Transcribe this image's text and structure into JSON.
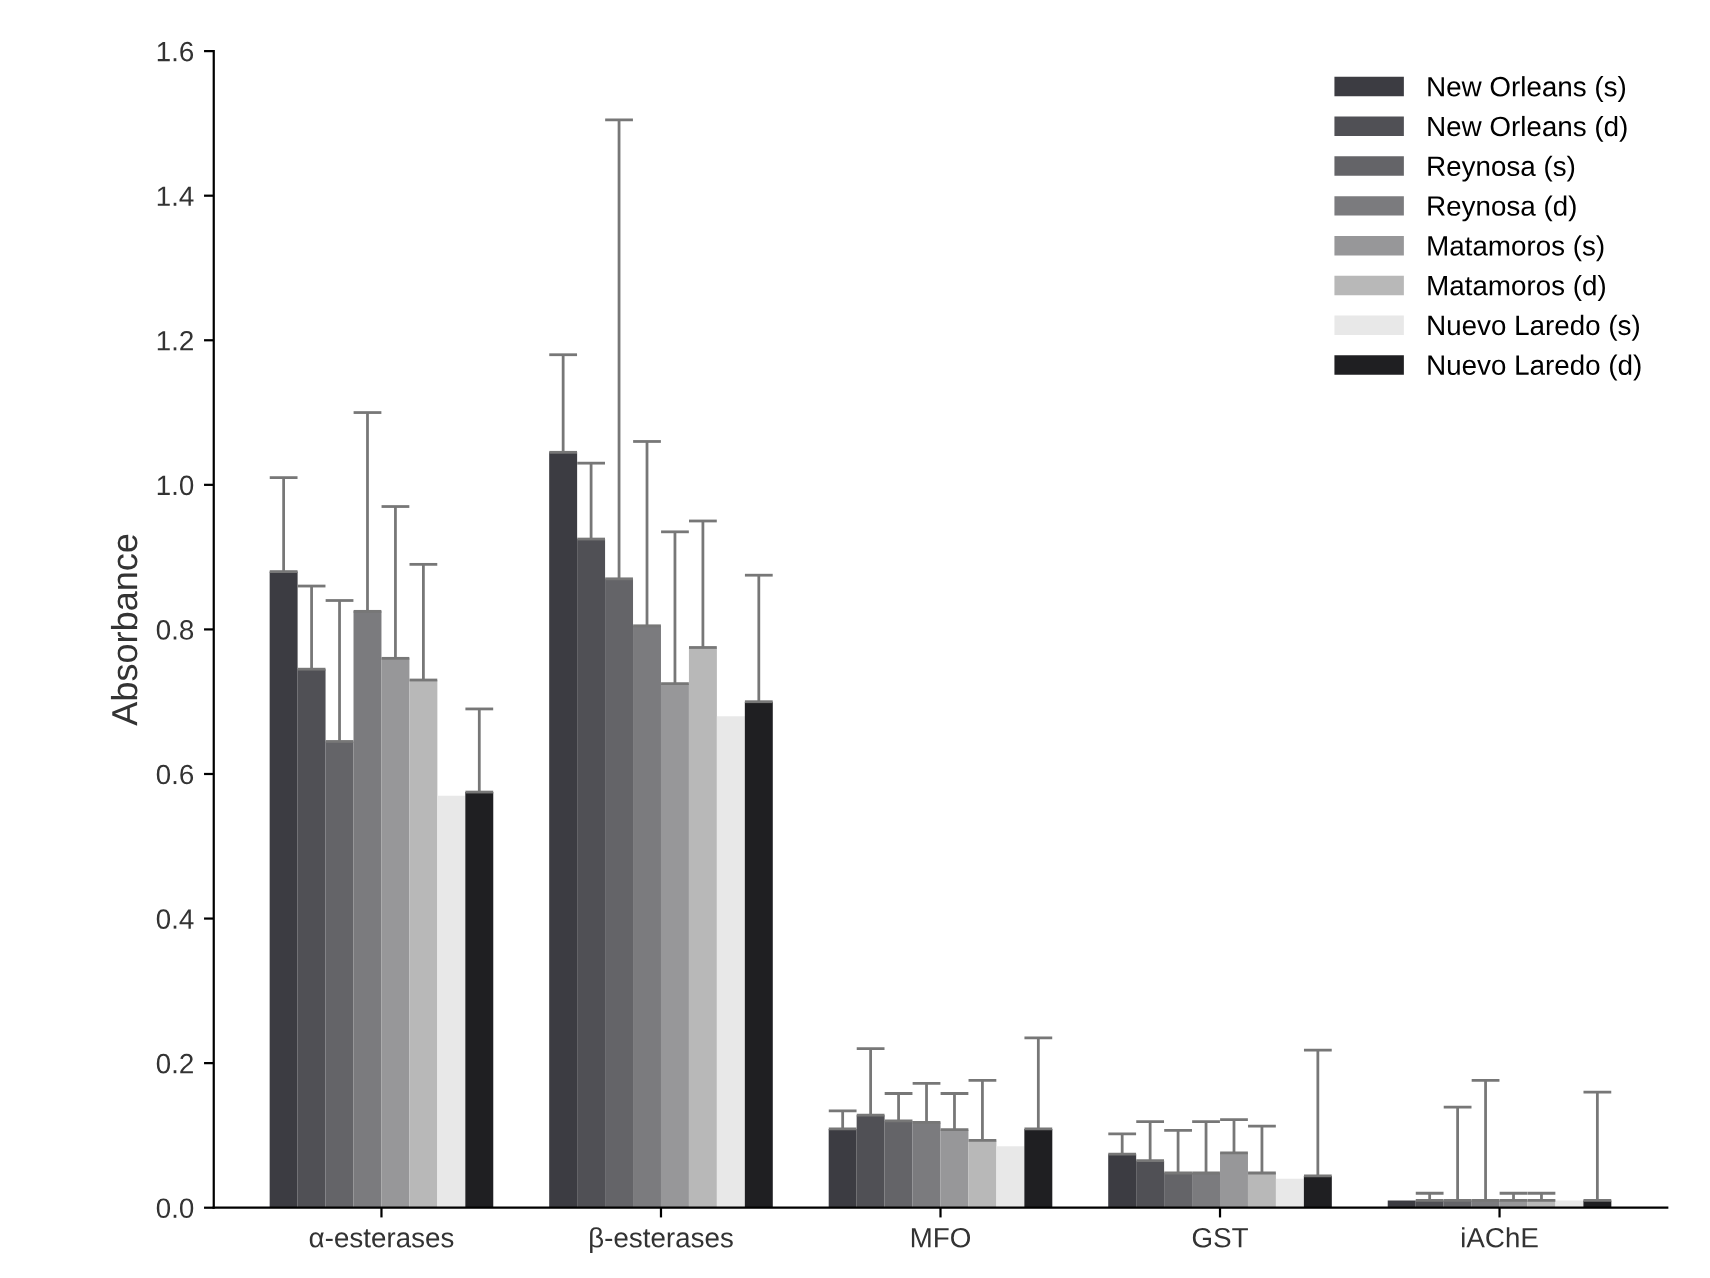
{
  "chart_data": {
    "type": "bar",
    "ylabel": "Absorbance",
    "categories": [
      "α-esterases",
      "β-esterases",
      "MFO",
      "GST",
      "iAChE"
    ],
    "ylim": [
      0,
      1.6
    ],
    "yticks": [
      {
        "value": 0,
        "label": "0.0"
      },
      {
        "value": 0.2,
        "label": "0.2"
      },
      {
        "value": 0.4,
        "label": "0.4"
      },
      {
        "value": 0.6,
        "label": "0.6"
      },
      {
        "value": 0.8,
        "label": "0.8"
      },
      {
        "value": 1.0,
        "label": "1.0"
      },
      {
        "value": 1.2,
        "label": "1.2"
      },
      {
        "value": 1.4,
        "label": "1.4"
      },
      {
        "value": 1.6,
        "label": "1.6"
      }
    ],
    "grid": false,
    "legend": "top right",
    "series": [
      {
        "name": "New Orleans (s)",
        "color": "#3c3c42",
        "values": [
          0.88,
          1.045,
          0.109,
          0.074,
          0.01
        ],
        "errors": [
          [
            0.88,
            1.01
          ],
          [
            1.045,
            1.18
          ],
          [
            0.109,
            0.134
          ],
          [
            0.074,
            0.102
          ],
          null
        ]
      },
      {
        "name": "New Orleans (d)",
        "color": "#505055",
        "values": [
          0.745,
          0.925,
          0.128,
          0.065,
          0.01
        ],
        "errors": [
          [
            0.745,
            0.86
          ],
          [
            0.925,
            1.03
          ],
          [
            0.128,
            0.22
          ],
          [
            0.065,
            0.119
          ],
          [
            0.01,
            0.02
          ]
        ]
      },
      {
        "name": "Reynosa (s)",
        "color": "#646468",
        "values": [
          0.645,
          0.87,
          0.12,
          0.048,
          0.01
        ],
        "errors": [
          [
            0.645,
            0.84
          ],
          [
            0.87,
            1.505
          ],
          [
            0.12,
            0.158
          ],
          [
            0.048,
            0.107
          ],
          [
            0.01,
            0.139
          ]
        ]
      },
      {
        "name": "Reynosa (d)",
        "color": "#7b7b7e",
        "values": [
          0.825,
          0.805,
          0.118,
          0.048,
          0.01
        ],
        "errors": [
          [
            0.825,
            1.1
          ],
          [
            0.805,
            1.06
          ],
          [
            0.118,
            0.172
          ],
          [
            0.048,
            0.119
          ],
          [
            0.01,
            0.176
          ]
        ]
      },
      {
        "name": "Matamoros (s)",
        "color": "#979799",
        "values": [
          0.76,
          0.725,
          0.108,
          0.076,
          0.01
        ],
        "errors": [
          [
            0.76,
            0.97
          ],
          [
            0.725,
            0.935
          ],
          [
            0.108,
            0.158
          ],
          [
            0.076,
            0.122
          ],
          [
            0.01,
            0.02
          ]
        ]
      },
      {
        "name": "Matamoros (d)",
        "color": "#b8b8b8",
        "values": [
          0.73,
          0.775,
          0.093,
          0.048,
          0.01
        ],
        "errors": [
          [
            0.73,
            0.89
          ],
          [
            0.775,
            0.95
          ],
          [
            0.093,
            0.176
          ],
          [
            0.048,
            0.113
          ],
          [
            0.01,
            0.02
          ]
        ]
      },
      {
        "name": "Nuevo Laredo (s)",
        "color": "#e8e8e8",
        "values": [
          0.57,
          0.68,
          0.085,
          0.04,
          0.01
        ],
        "errors": [
          null,
          null,
          null,
          null,
          null
        ]
      },
      {
        "name": "Nuevo Laredo (d)",
        "color": "#1f1f22",
        "values": [
          0.575,
          0.7,
          0.109,
          0.044,
          0.01
        ],
        "errors": [
          [
            0.575,
            0.69
          ],
          [
            0.7,
            0.875
          ],
          [
            0.109,
            0.235
          ],
          [
            0.044,
            0.218
          ],
          [
            0.01,
            0.16
          ]
        ]
      }
    ]
  }
}
